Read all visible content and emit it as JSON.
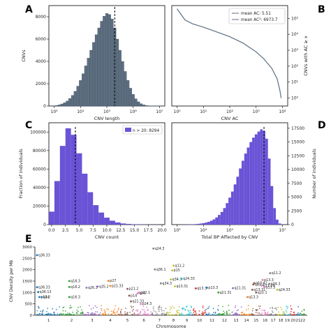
{
  "panels": {
    "A": "A",
    "B": "B",
    "C": "C",
    "D": "D",
    "E": "E"
  },
  "colors": {
    "slate": "#5d6e80",
    "slate_edge": "#3f4f60",
    "purple": "#6a53d6",
    "median_line": "#000000",
    "chromosome_palette": [
      "#1f77b4",
      "#2ca02c",
      "#9467bd",
      "#ff7f0e",
      "#8c564b",
      "#e377c2",
      "#7f7f7f",
      "#bcbd22",
      "#17becf",
      "#d62728"
    ]
  },
  "chart_data": [
    {
      "id": "A",
      "type": "bar",
      "xlabel": "CNV length",
      "ylabel": "CNVs",
      "xscale": "log",
      "xlim_log10": [
        2.8,
        7.2
      ],
      "ylim": [
        0,
        9000
      ],
      "yticks": [
        0,
        2000,
        4000,
        6000,
        8000
      ],
      "xtick_labels": [
        "10³",
        "10⁴",
        "10⁵",
        "10⁶",
        "10⁷"
      ],
      "xtick_log10": [
        3,
        4,
        5,
        6,
        7
      ],
      "dashed_vline_log10": 5.3,
      "bins_log10": [
        3.0,
        3.1,
        3.2,
        3.3,
        3.4,
        3.5,
        3.6,
        3.7,
        3.8,
        3.9,
        4.0,
        4.1,
        4.2,
        4.3,
        4.4,
        4.5,
        4.6,
        4.7,
        4.8,
        4.9,
        5.0,
        5.1,
        5.2,
        5.3,
        5.4,
        5.5,
        5.6,
        5.7,
        5.8,
        5.9,
        6.0,
        6.1,
        6.2,
        6.3,
        6.4,
        6.5,
        6.6,
        6.7,
        6.8,
        6.9,
        7.0
      ],
      "values": [
        30,
        60,
        110,
        190,
        300,
        460,
        680,
        960,
        1320,
        1780,
        2300,
        2900,
        3600,
        4300,
        5000,
        5700,
        6400,
        7000,
        7600,
        8050,
        8300,
        8200,
        7800,
        7000,
        6000,
        5000,
        4000,
        3100,
        2300,
        1600,
        1050,
        650,
        380,
        210,
        110,
        55,
        25,
        12,
        5,
        2,
        1
      ]
    },
    {
      "id": "B",
      "type": "line",
      "xlabel": "CNV AC",
      "ylabel": "CNVs with AC ≥ x",
      "xscale": "log",
      "yscale": "log",
      "xtick_labels": [
        "10⁰",
        "10¹",
        "10²",
        "10³",
        "10⁴"
      ],
      "xtick_log10": [
        0,
        1,
        2,
        3,
        4
      ],
      "ytick_labels": [
        "10⁰",
        "10¹",
        "10²",
        "10³",
        "10⁴",
        "10⁵"
      ],
      "ytick_log10": [
        0,
        1,
        2,
        3,
        4,
        5
      ],
      "xlim_log10": [
        -0.2,
        4.2
      ],
      "ylim_log10": [
        -0.5,
        5.8
      ],
      "legend": [
        "mean AC: 5.51",
        "mean AC²: 6973.7"
      ],
      "legend_position": "top-right",
      "x_log10": [
        0,
        0.3,
        0.6,
        1.0,
        1.5,
        2.0,
        2.5,
        3.0,
        3.3,
        3.6,
        3.8,
        3.9,
        3.95
      ],
      "y_log10": [
        5.6,
        4.9,
        4.65,
        4.45,
        4.15,
        3.85,
        3.45,
        2.9,
        2.45,
        1.85,
        1.2,
        0.5,
        0.0
      ]
    },
    {
      "id": "C",
      "type": "bar",
      "xlabel": "CNV count",
      "ylabel": "Fraction of individuals",
      "xlim": [
        -0.5,
        20.5
      ],
      "ylim": [
        0,
        110000
      ],
      "xticks": [
        0.0,
        2.5,
        5.0,
        7.5,
        10.0,
        12.5,
        15.0,
        17.5,
        20.0
      ],
      "xtick_labels": [
        "0.0",
        "2.5",
        "5.0",
        "7.5",
        "10.0",
        "12.5",
        "15.0",
        "17.5",
        "20.0"
      ],
      "yticks": [
        0,
        20000,
        40000,
        60000,
        80000,
        100000
      ],
      "ytick_labels": [
        "0",
        "20000",
        "40000",
        "60000",
        "80000",
        "100000"
      ],
      "dashed_vline": 4.3,
      "legend": [
        "n > 20: 8294"
      ],
      "legend_position": "top-right",
      "categories": [
        0,
        1,
        2,
        3,
        4,
        5,
        6,
        7,
        8,
        9,
        10,
        11,
        12,
        13,
        14,
        15,
        16,
        17,
        18,
        19,
        20
      ],
      "values": [
        14000,
        47000,
        85000,
        104000,
        97000,
        77000,
        55000,
        35000,
        21000,
        13000,
        7500,
        4200,
        2300,
        1200,
        700,
        400,
        250,
        150,
        90,
        60,
        40
      ]
    },
    {
      "id": "D",
      "type": "bar",
      "xlabel": "Total BP Affected by CNV",
      "ylabel": "Number of individuals",
      "xscale": "log",
      "xlim_log10": [
        2.8,
        7.2
      ],
      "ylim": [
        0,
        18500
      ],
      "yticks": [
        0,
        2500,
        5000,
        7500,
        10000,
        12500,
        15000,
        17500
      ],
      "ytick_labels": [
        "0",
        "2500",
        "5000",
        "7500",
        "10000",
        "12500",
        "15000",
        "17500"
      ],
      "xtick_labels": [
        "10³",
        "10⁴",
        "10⁵",
        "10⁶",
        "10⁷"
      ],
      "xtick_log10": [
        3,
        4,
        5,
        6,
        7
      ],
      "dashed_vline_log10": 6.3,
      "bins_log10": [
        3.0,
        3.1,
        3.2,
        3.3,
        3.4,
        3.5,
        3.6,
        3.7,
        3.8,
        3.9,
        4.0,
        4.1,
        4.2,
        4.3,
        4.4,
        4.5,
        4.6,
        4.7,
        4.8,
        4.9,
        5.0,
        5.1,
        5.2,
        5.3,
        5.4,
        5.5,
        5.6,
        5.7,
        5.8,
        5.9,
        6.0,
        6.1,
        6.2,
        6.3,
        6.4,
        6.5,
        6.6,
        6.7,
        6.8,
        6.9,
        7.0
      ],
      "values": [
        5,
        8,
        12,
        20,
        30,
        45,
        65,
        90,
        130,
        190,
        260,
        360,
        500,
        700,
        950,
        1300,
        1750,
        2300,
        3000,
        3900,
        4900,
        6000,
        7300,
        8700,
        10200,
        11600,
        12900,
        14000,
        15000,
        15800,
        16400,
        16900,
        17300,
        17000,
        15600,
        12000,
        7000,
        3000,
        900,
        200,
        40
      ]
    },
    {
      "id": "E",
      "type": "scatter",
      "xlabel": "Chromosome",
      "ylabel": "CNV Density per Mb",
      "ylim": [
        0,
        3000
      ],
      "yticks": [
        0,
        500,
        1000,
        1500,
        2000,
        2500,
        3000
      ],
      "ytick_labels": [
        "0",
        "500",
        "1000",
        "1500",
        "2000",
        "2500",
        "3000"
      ],
      "chromosomes": [
        "1",
        "2",
        "3",
        "4",
        "5",
        "6",
        "7",
        "8",
        "9",
        "10",
        "11",
        "12",
        "13",
        "14",
        "15",
        "16",
        "17",
        "18",
        "19",
        "20",
        "21",
        "22"
      ],
      "chrom_tick_labels": [
        "1",
        "2",
        "3",
        "4",
        "5",
        "6",
        "7",
        "8",
        "9",
        "10",
        "11",
        "12",
        "13",
        "14",
        "15",
        "16",
        "17",
        "18",
        "19",
        "20",
        "21",
        "22"
      ],
      "highlight_x": [
        0.0,
        0.0,
        0.05,
        0.1,
        0.2,
        1.4,
        1.4,
        1.4,
        2.2,
        2.8,
        3.4,
        3.5,
        4.5,
        4.6,
        4.7,
        5.1,
        5.2,
        5.3,
        6.1,
        6.2,
        6.6,
        7.3,
        7.4,
        7.5,
        7.6,
        8.1,
        9.2,
        10.1,
        11.0,
        12.2,
        13.6,
        14.1,
        14.2,
        14.3,
        14.5,
        15.1,
        15.2,
        15.4,
        16.0,
        16.1,
        17.0
      ],
      "highlight_y": [
        2640,
        1230,
        1020,
        800,
        800,
        1240,
        1500,
        800,
        1210,
        1260,
        1510,
        1290,
        1160,
        860,
        610,
        960,
        1000,
        500,
        2930,
        2010,
        1400,
        1570,
        1970,
        2180,
        1270,
        1600,
        1180,
        1210,
        1000,
        1190,
        800,
        1120,
        1350,
        1410,
        1000,
        1300,
        1550,
        1230,
        1380,
        1850,
        1120
      ],
      "highlight_labels": [
        "q36.33",
        "q36.33",
        "q36.13",
        "p13.2",
        "q44",
        "q16.2",
        "q16.3",
        "q16.3",
        "q26.3",
        "q35.2",
        "p27",
        "p21.33",
        "p21.2",
        "p14",
        "q21.33",
        "q26",
        "p22.1",
        "p24.3",
        "q24.3",
        "q36.1",
        "q34.3",
        "q34.3",
        "p15",
        "q11.2",
        "q13.31",
        "q24.33",
        "q13.3",
        "p13.3",
        "q21.31",
        "q21.31",
        "q13.3",
        "q13.31",
        "q13.2",
        "q13.42",
        "q22.1",
        "q11.23",
        "p13.3",
        "q13.3",
        "q34.3",
        "q11.2",
        "q24.33"
      ]
    }
  ]
}
